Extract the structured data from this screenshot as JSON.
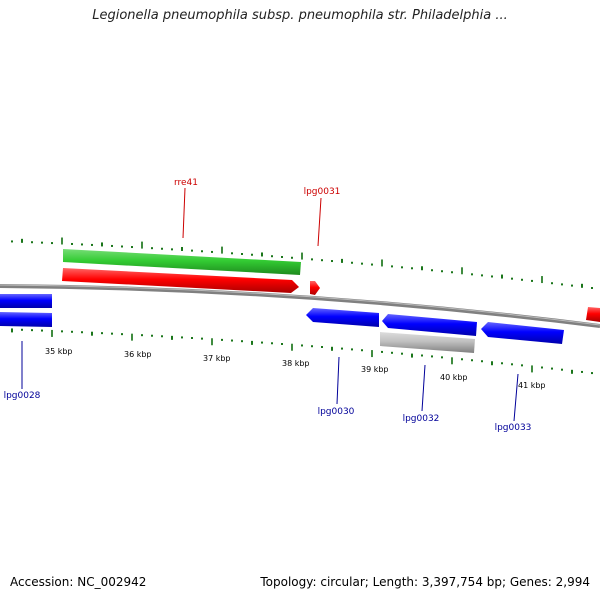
{
  "title": "Legionella pneumophila subsp. pneumophila str. Philadelphia ...",
  "footer": {
    "accession": "Accession: NC_002942",
    "summary": "Topology: circular; Length: 3,397,754 bp; Genes: 2,994"
  },
  "colors": {
    "forward_gene": "#ff0000",
    "reverse_gene": "#0000ff",
    "rrna": "#33cc33",
    "pseudo": "#c0c0c0",
    "ticks": "#006600",
    "backbone": "#808080",
    "forward_label": "#cc0000",
    "reverse_label": "#000099"
  },
  "scale": {
    "ticks": [
      {
        "label": "35 kbp"
      },
      {
        "label": "36 kbp"
      },
      {
        "label": "37 kbp"
      },
      {
        "label": "38 kbp"
      },
      {
        "label": "39 kbp"
      },
      {
        "label": "40 kbp"
      },
      {
        "label": "41 kbp"
      }
    ]
  },
  "features": [
    {
      "name": "rre41",
      "strand": "forward",
      "type": "rRNA"
    },
    {
      "name": "lpg0031",
      "strand": "forward",
      "type": "gene"
    },
    {
      "name": "lpg0028",
      "strand": "reverse",
      "type": "gene"
    },
    {
      "name": "lpg0030",
      "strand": "reverse",
      "type": "gene"
    },
    {
      "name": "lpg0032",
      "strand": "reverse",
      "type": "gene"
    },
    {
      "name": "lpg0033",
      "strand": "reverse",
      "type": "gene"
    }
  ]
}
